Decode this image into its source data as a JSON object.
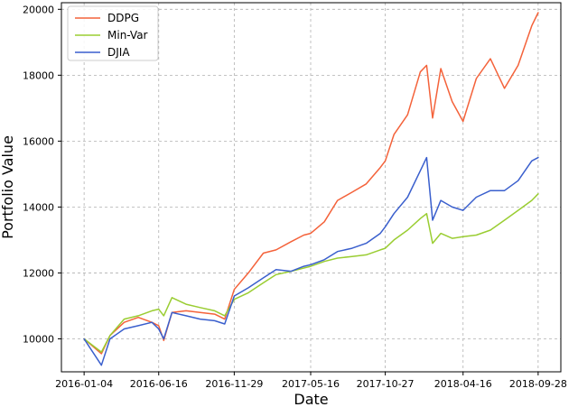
{
  "chart_data": {
    "type": "line",
    "title": "",
    "xlabel": "Date",
    "ylabel": "Portfolio Value",
    "x_tick_labels": [
      "2016-01-04",
      "2016-06-16",
      "2016-11-29",
      "2017-05-16",
      "2017-10-27",
      "2018-04-16",
      "2018-09-28"
    ],
    "y_ticks": [
      10000,
      12000,
      14000,
      16000,
      18000,
      20000
    ],
    "ylim": [
      9000,
      20200
    ],
    "grid": true,
    "legend_position": "top-left",
    "series": [
      {
        "name": "DDPG",
        "color": "#f4623a",
        "x": [
          "2016-01-04",
          "2016-02-11",
          "2016-03-01",
          "2016-04-01",
          "2016-05-02",
          "2016-06-01",
          "2016-06-16",
          "2016-06-27",
          "2016-07-15",
          "2016-08-15",
          "2016-09-15",
          "2016-10-17",
          "2016-11-08",
          "2016-11-29",
          "2016-12-30",
          "2017-02-01",
          "2017-03-01",
          "2017-04-03",
          "2017-05-01",
          "2017-05-16",
          "2017-06-15",
          "2017-07-14",
          "2017-08-15",
          "2017-09-15",
          "2017-10-16",
          "2017-10-27",
          "2017-11-15",
          "2017-12-15",
          "2018-01-12",
          "2018-01-26",
          "2018-02-08",
          "2018-02-26",
          "2018-03-23",
          "2018-04-16",
          "2018-05-15",
          "2018-06-15",
          "2018-07-16",
          "2018-08-15",
          "2018-09-14",
          "2018-09-28"
        ],
        "values": [
          10000,
          9550,
          10100,
          10500,
          10650,
          10500,
          10400,
          9950,
          10800,
          10850,
          10800,
          10750,
          10600,
          11500,
          12000,
          12600,
          12700,
          12950,
          13150,
          13200,
          13550,
          14200,
          14450,
          14700,
          15200,
          15400,
          16200,
          16800,
          18100,
          18300,
          16700,
          18200,
          17200,
          16600,
          17900,
          18500,
          17600,
          18300,
          19500,
          19900
        ]
      },
      {
        "name": "Min-Var",
        "color": "#9acd32",
        "x": [
          "2016-01-04",
          "2016-02-11",
          "2016-03-01",
          "2016-04-01",
          "2016-05-02",
          "2016-06-01",
          "2016-06-16",
          "2016-06-27",
          "2016-07-15",
          "2016-08-15",
          "2016-09-15",
          "2016-10-17",
          "2016-11-08",
          "2016-11-29",
          "2016-12-30",
          "2017-02-01",
          "2017-03-01",
          "2017-04-03",
          "2017-05-01",
          "2017-05-16",
          "2017-06-15",
          "2017-07-14",
          "2017-08-15",
          "2017-09-15",
          "2017-10-16",
          "2017-10-27",
          "2017-11-15",
          "2017-12-15",
          "2018-01-12",
          "2018-01-26",
          "2018-02-08",
          "2018-02-26",
          "2018-03-23",
          "2018-04-16",
          "2018-05-15",
          "2018-06-15",
          "2018-07-16",
          "2018-08-15",
          "2018-09-14",
          "2018-09-28"
        ],
        "values": [
          10000,
          9600,
          10100,
          10600,
          10700,
          10850,
          10900,
          10700,
          11250,
          11050,
          10950,
          10850,
          10700,
          11200,
          11400,
          11700,
          11950,
          12050,
          12150,
          12200,
          12350,
          12450,
          12500,
          12550,
          12700,
          12750,
          13000,
          13300,
          13650,
          13800,
          12900,
          13200,
          13050,
          13100,
          13150,
          13300,
          13600,
          13900,
          14200,
          14400
        ]
      },
      {
        "name": "DJIA",
        "color": "#3a5fcd",
        "x": [
          "2016-01-04",
          "2016-02-11",
          "2016-03-01",
          "2016-04-01",
          "2016-05-02",
          "2016-06-01",
          "2016-06-16",
          "2016-06-27",
          "2016-07-15",
          "2016-08-15",
          "2016-09-15",
          "2016-10-17",
          "2016-11-08",
          "2016-11-29",
          "2016-12-30",
          "2017-02-01",
          "2017-03-01",
          "2017-04-03",
          "2017-05-01",
          "2017-05-16",
          "2017-06-15",
          "2017-07-14",
          "2017-08-15",
          "2017-09-15",
          "2017-10-16",
          "2017-10-27",
          "2017-11-15",
          "2017-12-15",
          "2018-01-12",
          "2018-01-26",
          "2018-02-08",
          "2018-02-26",
          "2018-03-23",
          "2018-04-16",
          "2018-05-15",
          "2018-06-15",
          "2018-07-16",
          "2018-08-15",
          "2018-09-14",
          "2018-09-28"
        ],
        "values": [
          10000,
          9200,
          10000,
          10300,
          10400,
          10500,
          10300,
          10000,
          10800,
          10700,
          10600,
          10550,
          10450,
          11300,
          11550,
          11850,
          12100,
          12050,
          12200,
          12250,
          12400,
          12650,
          12750,
          12900,
          13200,
          13400,
          13800,
          14300,
          15100,
          15500,
          13600,
          14200,
          14000,
          13900,
          14300,
          14500,
          14500,
          14800,
          15400,
          15500
        ]
      }
    ]
  }
}
